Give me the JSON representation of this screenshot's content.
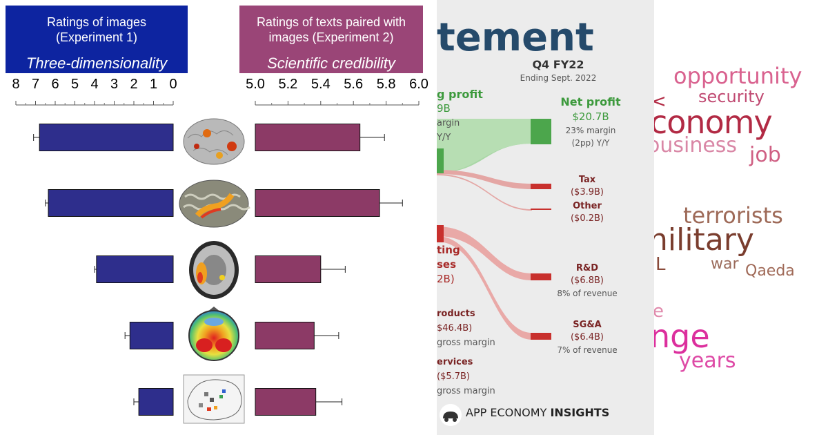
{
  "panel1": {
    "left_header": {
      "line1": "Ratings of images",
      "line2": "(Experiment 1)",
      "subtitle": "Three-dimensionality",
      "color": "#0d24a0"
    },
    "right_header": {
      "line1": "Ratings of texts paired with",
      "line2": "images (Experiment 2)",
      "subtitle": "Scientific credibility",
      "color": "#9a4577"
    },
    "image_icons": [
      "brain-3d-activation-image",
      "inflated-brain-image",
      "axial-mri-slice-image",
      "eeg-topography-image",
      "glass-brain-plot-image"
    ]
  },
  "chart_data": [
    {
      "type": "bar",
      "orientation": "horizontal",
      "axis_direction": "reversed",
      "title": "Three-dimensionality",
      "ticks": [
        "8",
        "7",
        "6",
        "5",
        "4",
        "3",
        "2",
        "1",
        "0"
      ],
      "xlim": [
        0,
        8
      ],
      "values": [
        6.8,
        6.35,
        3.9,
        2.2,
        1.75
      ],
      "errors": [
        0.3,
        0.15,
        0.1,
        0.25,
        0.25
      ],
      "bar_color": "#2e2e8c"
    },
    {
      "type": "bar",
      "orientation": "horizontal",
      "title": "Scientific credibility",
      "ticks": [
        "5.0",
        "5.2",
        "5.4",
        "5.6",
        "5.8",
        "6.0"
      ],
      "xlim": [
        5.0,
        6.0
      ],
      "values": [
        5.64,
        5.76,
        5.4,
        5.36,
        5.37
      ],
      "errors": [
        0.15,
        0.14,
        0.15,
        0.15,
        0.16
      ],
      "bar_color": "#8c3a66"
    },
    {
      "type": "sankey",
      "title_fragment": "tement",
      "period": "Q4 FY22",
      "ending": "Ending Sept. 2022",
      "nodes": [
        {
          "label": "g profit",
          "value": "9B",
          "note1": "argin",
          "note2": "Y/Y"
        },
        {
          "label": "ting",
          "value": "ses",
          "note1": "2B)"
        },
        {
          "label": "Net profit",
          "value": "$20.7B",
          "note1": "23% margin",
          "note2": "(2pp) Y/Y"
        },
        {
          "label": "Tax",
          "value": "($3.9B)"
        },
        {
          "label": "Other",
          "value": "($0.2B)"
        },
        {
          "label": "R&D",
          "value": "($6.8B)",
          "note1": "8% of revenue"
        },
        {
          "label": "SG&A",
          "value": "($6.4B)",
          "note1": "7% of revenue"
        },
        {
          "label": "roducts",
          "value": "$46.4B)",
          "note1": "gross margin"
        },
        {
          "label": "ervices",
          "value": "($5.7B)",
          "note1": "gross margin"
        }
      ],
      "colors": {
        "profit": "#4ca64c",
        "expense": "#c8302d",
        "title": "#254a6b"
      }
    }
  ],
  "panel2_footer": {
    "brand_regular": "APP ECONOMY ",
    "brand_bold": "INSIGHTS"
  },
  "panel3_words": [
    {
      "text": "opportunity",
      "color": "#d9628f"
    },
    {
      "text": "security",
      "color": "#c04a72"
    },
    {
      "text": "<",
      "color": "#b22a44"
    },
    {
      "text": "conomy",
      "color": "#b22a44"
    },
    {
      "text": "ousiness",
      "color": "#d987a6"
    },
    {
      "text": "job",
      "color": "#cf5f83"
    },
    {
      "text": "terrorists",
      "color": "#9e6a58"
    },
    {
      "text": "nilitary",
      "color": "#7a3d2e"
    },
    {
      "text": "L",
      "color": "#8a4a3a"
    },
    {
      "text": "war",
      "color": "#9a6a5a"
    },
    {
      "text": "Qaeda",
      "color": "#a06a58"
    },
    {
      "text": "e",
      "color": "#e08aac"
    },
    {
      "text": "nge",
      "color": "#dc2f9d"
    },
    {
      "text": "years",
      "color": "#de4aa6"
    }
  ]
}
